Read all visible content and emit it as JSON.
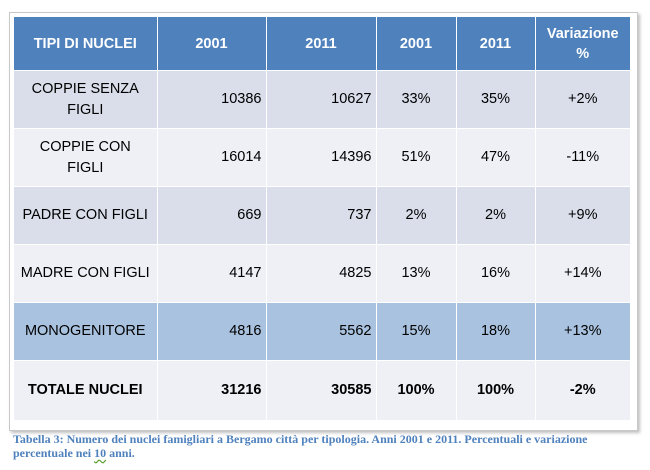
{
  "table": {
    "headers": [
      "TIPI DI NUCLEI",
      "2001",
      "2011",
      "2001",
      "2011",
      "Variazione %"
    ],
    "rows": [
      {
        "label": "COPPIE SENZA FIGLI",
        "v2001": "10386",
        "v2011": "10627",
        "p2001": "33%",
        "p2011": "35%",
        "variazione": "+2%"
      },
      {
        "label": "COPPIE CON FIGLI",
        "v2001": "16014",
        "v2011": "14396",
        "p2001": "51%",
        "p2011": "47%",
        "variazione": "-11%"
      },
      {
        "label": "PADRE CON FIGLI",
        "v2001": "669",
        "v2011": "737",
        "p2001": "2%",
        "p2011": "2%",
        "variazione": "+9%"
      },
      {
        "label": "MADRE CON FIGLI",
        "v2001": "4147",
        "v2011": "4825",
        "p2001": "13%",
        "p2011": "16%",
        "variazione": "+14%"
      },
      {
        "label": "MONOGENITORE",
        "v2001": "4816",
        "v2011": "5562",
        "p2001": "15%",
        "p2011": "18%",
        "variazione": "+13%"
      }
    ],
    "total": {
      "label": "TOTALE NUCLEI",
      "v2001": "31216",
      "v2011": "30585",
      "p2001": "100%",
      "p2011": "100%",
      "variazione": "-2%"
    }
  },
  "caption": {
    "before": "Tabella 3: Numero dei nuclei famigliari a Bergamo città per tipologia. Anni 2001 e 2011. Percentuali e variazione percentuale nei ",
    "underlined": "10",
    "after": " anni."
  },
  "colors": {
    "header_bg": "#4f81bd",
    "row_dark": "#d9deea",
    "row_light": "#eef0f6",
    "row_highlight": "#a9c2df",
    "caption_text": "#4f81bd"
  }
}
